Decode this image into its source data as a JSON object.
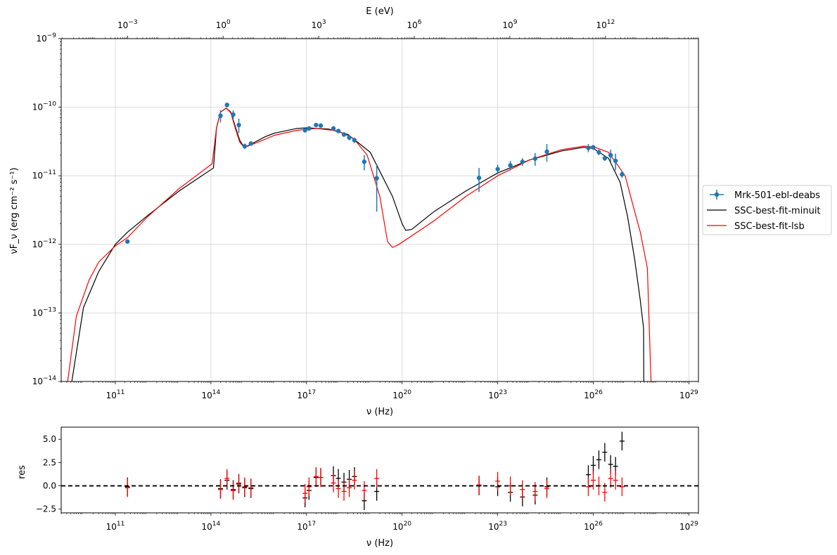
{
  "chart_data": [
    {
      "type": "line",
      "title": "",
      "xlabel": "ν  (Hz)",
      "ylabel": "νF_ν  (erg cm⁻² s⁻¹)",
      "top_xlabel": "E (eV)",
      "x_scale": "log",
      "y_scale": "log",
      "xlim": [
        2000000000.0,
        2e+29
      ],
      "ylim": [
        1e-14,
        1e-09
      ],
      "top_xlim_eV": [
        8.27e-06,
        827000000000000.0
      ],
      "grid": true,
      "legend_position": "outside-right",
      "x_ticks": [
        {
          "pre": "10",
          "exp": "11",
          "v": 100000000000.0
        },
        {
          "pre": "10",
          "exp": "14",
          "v": 100000000000000.0
        },
        {
          "pre": "10",
          "exp": "17",
          "v": 1e+17
        },
        {
          "pre": "10",
          "exp": "20",
          "v": 1e+20
        },
        {
          "pre": "10",
          "exp": "23",
          "v": 1e+23
        },
        {
          "pre": "10",
          "exp": "26",
          "v": 1e+26
        },
        {
          "pre": "10",
          "exp": "29",
          "v": 1e+29
        }
      ],
      "y_ticks": [
        {
          "pre": "10",
          "exp": "−14",
          "v": 1e-14
        },
        {
          "pre": "10",
          "exp": "−13",
          "v": 1e-13
        },
        {
          "pre": "10",
          "exp": "−12",
          "v": 1e-12
        },
        {
          "pre": "10",
          "exp": "−11",
          "v": 1e-11
        },
        {
          "pre": "10",
          "exp": "−10",
          "v": 1e-10
        },
        {
          "pre": "10",
          "exp": "−9",
          "v": 1e-09
        }
      ],
      "top_ticks": [
        {
          "pre": "10",
          "exp": "−3",
          "v": 0.001
        },
        {
          "pre": "10",
          "exp": "0",
          "v": 1
        },
        {
          "pre": "10",
          "exp": "3",
          "v": 1000.0
        },
        {
          "pre": "10",
          "exp": "6",
          "v": 1000000.0
        },
        {
          "pre": "10",
          "exp": "9",
          "v": 1000000000.0
        },
        {
          "pre": "10",
          "exp": "12",
          "v": 1000000000000.0
        }
      ],
      "series": [
        {
          "name": "Mrk-501-ebl-deabs",
          "kind": "errorbar",
          "color": "#1f77b4",
          "points": [
            {
              "x": 240000000000.0,
              "y": 1.1e-12,
              "ylo": 1.05e-12,
              "yhi": 1.15e-12
            },
            {
              "x": 200000000000000.0,
              "y": 7.5e-11,
              "ylo": 6e-11,
              "yhi": 9e-11
            },
            {
              "x": 320000000000000.0,
              "y": 1.08e-10,
              "ylo": 1e-10,
              "yhi": 1.16e-10
            },
            {
              "x": 500000000000000.0,
              "y": 7.8e-11,
              "ylo": 6.5e-11,
              "yhi": 9e-11
            },
            {
              "x": 750000000000000.0,
              "y": 5.5e-11,
              "ylo": 4.2e-11,
              "yhi": 6.8e-11
            },
            {
              "x": 1150000000000000.0,
              "y": 2.7e-11,
              "ylo": 2.45e-11,
              "yhi": 2.95e-11
            },
            {
              "x": 1800000000000000.0,
              "y": 2.95e-11,
              "ylo": 2.75e-11,
              "yhi": 3.15e-11
            },
            {
              "x": 9e+16,
              "y": 4.6e-11,
              "ylo": 4.3e-11,
              "yhi": 4.9e-11
            },
            {
              "x": 1.2e+17,
              "y": 4.9e-11,
              "ylo": 4.6e-11,
              "yhi": 5.2e-11
            },
            {
              "x": 2e+17,
              "y": 5.5e-11,
              "ylo": 5.2e-11,
              "yhi": 5.8e-11
            },
            {
              "x": 2.8e+17,
              "y": 5.4e-11,
              "ylo": 5.1e-11,
              "yhi": 5.7e-11
            },
            {
              "x": 7e+17,
              "y": 4.9e-11,
              "ylo": 4.5e-11,
              "yhi": 5.3e-11
            },
            {
              "x": 1e+18,
              "y": 4.5e-11,
              "ylo": 4.2e-11,
              "yhi": 4.8e-11
            },
            {
              "x": 1.5e+18,
              "y": 4e-11,
              "ylo": 3.7e-11,
              "yhi": 4.3e-11
            },
            {
              "x": 2.2e+18,
              "y": 3.6e-11,
              "ylo": 3.3e-11,
              "yhi": 3.9e-11
            },
            {
              "x": 3.2e+18,
              "y": 3.3e-11,
              "ylo": 3e-11,
              "yhi": 3.6e-11
            },
            {
              "x": 6.5e+18,
              "y": 1.6e-11,
              "ylo": 1.2e-11,
              "yhi": 2e-11
            },
            {
              "x": 1.6e+19,
              "y": 9.2e-12,
              "ylo": 3e-12,
              "yhi": 1.5e-11
            },
            {
              "x": 2.6e+22,
              "y": 9.3e-12,
              "ylo": 5.8e-12,
              "yhi": 1.3e-11
            },
            {
              "x": 1e+23,
              "y": 1.25e-11,
              "ylo": 1.05e-11,
              "yhi": 1.45e-11
            },
            {
              "x": 2.5e+23,
              "y": 1.42e-11,
              "ylo": 1.2e-11,
              "yhi": 1.65e-11
            },
            {
              "x": 6e+23,
              "y": 1.6e-11,
              "ylo": 1.4e-11,
              "yhi": 1.8e-11
            },
            {
              "x": 1.5e+24,
              "y": 1.78e-11,
              "ylo": 1.4e-11,
              "yhi": 2.15e-11
            },
            {
              "x": 3.5e+24,
              "y": 2.25e-11,
              "ylo": 1.6e-11,
              "yhi": 2.9e-11
            },
            {
              "x": 7e+25,
              "y": 2.55e-11,
              "ylo": 2.2e-11,
              "yhi": 2.9e-11
            },
            {
              "x": 1e+26,
              "y": 2.6e-11,
              "ylo": 2.4e-11,
              "yhi": 2.8e-11
            },
            {
              "x": 1.5e+26,
              "y": 2.2e-11,
              "ylo": 2e-11,
              "yhi": 2.4e-11
            },
            {
              "x": 2.3e+26,
              "y": 1.8e-11,
              "ylo": 1.65e-11,
              "yhi": 1.95e-11
            },
            {
              "x": 3.5e+26,
              "y": 2e-11,
              "ylo": 1.6e-11,
              "yhi": 2.4e-11
            },
            {
              "x": 5e+26,
              "y": 1.65e-11,
              "ylo": 1.2e-11,
              "yhi": 2.1e-11
            },
            {
              "x": 8e+26,
              "y": 1.05e-11,
              "ylo": 9.3e-12,
              "yhi": 1.17e-11
            }
          ]
        },
        {
          "name": "SSC-best-fit-minuit",
          "kind": "line",
          "color": "#000000",
          "points": [
            [
              4300000000.0,
              1e-14
            ],
            [
              10000000000.0,
              1.2e-13
            ],
            [
              30000000000.0,
              4e-13
            ],
            [
              100000000000.0,
              1e-12
            ],
            [
              240000000000.0,
              1.5e-12
            ],
            [
              1000000000000.0,
              2.6e-12
            ],
            [
              10000000000000.0,
              6e-12
            ],
            [
              120000000000000.0,
              1.3e-11
            ],
            [
              150000000000000.0,
              5e-11
            ],
            [
              200000000000000.0,
              8.5e-11
            ],
            [
              300000000000000.0,
              9.7e-11
            ],
            [
              420000000000000.0,
              8.5e-11
            ],
            [
              600000000000000.0,
              5e-11
            ],
            [
              800000000000000.0,
              3.3e-11
            ],
            [
              1100000000000000.0,
              2.6e-11
            ],
            [
              1600000000000000.0,
              2.8e-11
            ],
            [
              5000000000000000.0,
              3.7e-11
            ],
            [
              1e+16,
              4.2e-11
            ],
            [
              5e+16,
              4.9e-11
            ],
            [
              1e+17,
              5e-11
            ],
            [
              5e+17,
              4.8e-11
            ],
            [
              2e+18,
              4e-11
            ],
            [
              1e+19,
              2.2e-11
            ],
            [
              5e+19,
              5e-12
            ],
            [
              1e+20,
              2e-12
            ],
            [
              1.3e+20,
              1.6e-12
            ],
            [
              2e+20,
              1.65e-12
            ],
            [
              1e+21,
              3e-12
            ],
            [
              1e+22,
              6e-12
            ],
            [
              1e+23,
              1.1e-11
            ],
            [
              1e+24,
              1.7e-11
            ],
            [
              1e+25,
              2.3e-11
            ],
            [
              5e+25,
              2.6e-11
            ],
            [
              1e+26,
              2.5e-11
            ],
            [
              3e+26,
              1.8e-11
            ],
            [
              7e+26,
              8e-12
            ],
            [
              1.2e+27,
              2.5e-12
            ],
            [
              2e+27,
              6e-13
            ],
            [
              3e+27,
              1.5e-13
            ],
            [
              3.8e+27,
              6e-14
            ],
            [
              3.85e+27,
              1e-14
            ]
          ]
        },
        {
          "name": "SSC-best-fit-lsb",
          "kind": "line",
          "color": "#ff0000",
          "points": [
            [
              3200000000.0,
              1e-14
            ],
            [
              6000000000.0,
              9e-14
            ],
            [
              15000000000.0,
              3e-13
            ],
            [
              30000000000.0,
              5.5e-13
            ],
            [
              100000000000.0,
              9.5e-13
            ],
            [
              240000000000.0,
              1.25e-12
            ],
            [
              1000000000000.0,
              2.5e-12
            ],
            [
              10000000000000.0,
              6.5e-12
            ],
            [
              110000000000000.0,
              1.5e-11
            ],
            [
              150000000000000.0,
              5e-11
            ],
            [
              200000000000000.0,
              8.5e-11
            ],
            [
              300000000000000.0,
              9.7e-11
            ],
            [
              420000000000000.0,
              8.3e-11
            ],
            [
              600000000000000.0,
              4.7e-11
            ],
            [
              800000000000000.0,
              3.1e-11
            ],
            [
              1100000000000000.0,
              2.6e-11
            ],
            [
              1600000000000000.0,
              2.75e-11
            ],
            [
              5000000000000000.0,
              3.4e-11
            ],
            [
              1e+16,
              3.9e-11
            ],
            [
              5e+16,
              4.6e-11
            ],
            [
              2e+17,
              4.9e-11
            ],
            [
              1e+18,
              4.5e-11
            ],
            [
              3e+18,
              3.5e-11
            ],
            [
              8e+18,
              2e-11
            ],
            [
              2e+19,
              5e-12
            ],
            [
              3.5e+19,
              1.1e-12
            ],
            [
              5e+19,
              9e-13
            ],
            [
              8e+19,
              1e-12
            ],
            [
              1e+21,
              2.2e-12
            ],
            [
              1e+22,
              5e-12
            ],
            [
              1e+23,
              1e-11
            ],
            [
              1e+24,
              1.7e-11
            ],
            [
              1e+25,
              2.4e-11
            ],
            [
              5e+25,
              2.7e-11
            ],
            [
              1e+26,
              2.65e-11
            ],
            [
              3e+26,
              2.2e-11
            ],
            [
              1e+27,
              1e-11
            ],
            [
              2e+27,
              3e-12
            ],
            [
              3e+27,
              1.5e-12
            ],
            [
              5e+27,
              4.5e-13
            ],
            [
              6.3e+27,
              1.5e-14
            ],
            [
              6.5e+27,
              1e-14
            ]
          ]
        }
      ]
    },
    {
      "type": "scatter",
      "title": "",
      "xlabel": "ν  (Hz)",
      "ylabel": "res",
      "x_scale": "log",
      "xlim": [
        2000000000.0,
        2e+29
      ],
      "ylim": [
        -2.9,
        6.3
      ],
      "grid": false,
      "x_ticks": [
        {
          "pre": "10",
          "exp": "11",
          "v": 100000000000.0
        },
        {
          "pre": "10",
          "exp": "14",
          "v": 100000000000000.0
        },
        {
          "pre": "10",
          "exp": "17",
          "v": 1e+17
        },
        {
          "pre": "10",
          "exp": "20",
          "v": 1e+20
        },
        {
          "pre": "10",
          "exp": "23",
          "v": 1e+23
        },
        {
          "pre": "10",
          "exp": "26",
          "v": 1e+26
        },
        {
          "pre": "10",
          "exp": "29",
          "v": 1e+29
        }
      ],
      "y_ticks": [
        {
          "label": "−2.5",
          "v": -2.5
        },
        {
          "label": "0.0",
          "v": 0
        },
        {
          "label": "2.5",
          "v": 2.5
        },
        {
          "label": "5.0",
          "v": 5
        }
      ],
      "zero_line": 0,
      "series": [
        {
          "name": "",
          "color": "#000000",
          "x": [
            240000000000.0,
            200000000000000.0,
            320000000000000.0,
            500000000000000.0,
            750000000000000.0,
            1150000000000000.0,
            1800000000000000.0,
            9e+16,
            1.2e+17,
            2e+17,
            2.8e+17,
            7e+17,
            1e+18,
            1.5e+18,
            2.2e+18,
            3.2e+18,
            6.5e+18,
            1.6e+19,
            2.6e+22,
            1e+23,
            2.5e+23,
            6e+23,
            1.5e+24,
            3.5e+24,
            7e+25,
            1e+26,
            1.5e+26,
            2.3e+26,
            3.5e+26,
            5e+26,
            8e+26
          ],
          "y": [
            -0.1,
            -0.3,
            0.6,
            -0.4,
            0.2,
            -0.2,
            -0.3,
            -1.3,
            -0.5,
            0.9,
            0.9,
            1.1,
            0.8,
            0.4,
            0.7,
            1.0,
            -1.6,
            -0.6,
            0.0,
            -0.1,
            -0.7,
            -1.2,
            -1.0,
            -0.1,
            1.2,
            2.2,
            2.8,
            3.6,
            2.3,
            2.1,
            4.8
          ],
          "err": [
            1.0,
            1.0,
            1.0,
            1.0,
            1.0,
            1.0,
            1.0,
            1.0,
            1.0,
            1.0,
            1.0,
            1.0,
            1.0,
            1.0,
            1.0,
            1.0,
            1.0,
            1.0,
            1.0,
            1.0,
            1.0,
            1.0,
            1.0,
            1.0,
            1.0,
            1.0,
            1.0,
            1.0,
            1.0,
            1.0,
            1.0
          ]
        },
        {
          "name": "",
          "color": "#ff0000",
          "x": [
            240000000000.0,
            200000000000000.0,
            320000000000000.0,
            500000000000000.0,
            750000000000000.0,
            1150000000000000.0,
            1800000000000000.0,
            9e+16,
            1.2e+17,
            2e+17,
            2.8e+17,
            7e+17,
            1e+18,
            1.5e+18,
            2.2e+18,
            3.2e+18,
            6.5e+18,
            1.6e+19,
            2.6e+22,
            1e+23,
            2.5e+23,
            6e+23,
            1.5e+24,
            3.5e+24,
            7e+25,
            1e+26,
            1.5e+26,
            2.3e+26,
            3.5e+26,
            5e+26,
            8e+26
          ],
          "y": [
            -0.2,
            -0.4,
            0.8,
            -0.5,
            0.3,
            -0.1,
            -0.2,
            -0.8,
            -0.1,
            1.0,
            0.9,
            0.3,
            -0.3,
            -0.6,
            -0.2,
            0.6,
            -0.5,
            0.8,
            0.1,
            0.5,
            0.0,
            -0.4,
            -0.6,
            -0.3,
            -0.1,
            0.6,
            0.0,
            -0.7,
            0.8,
            0.6,
            -0.1
          ],
          "err": [
            1.0,
            1.0,
            1.0,
            1.0,
            1.0,
            1.0,
            1.0,
            1.0,
            1.0,
            1.0,
            1.0,
            1.0,
            1.0,
            1.0,
            1.0,
            1.0,
            1.0,
            1.0,
            1.0,
            1.0,
            1.0,
            1.0,
            1.0,
            1.0,
            1.0,
            1.0,
            1.0,
            1.0,
            1.0,
            1.0,
            1.0
          ]
        }
      ]
    }
  ]
}
